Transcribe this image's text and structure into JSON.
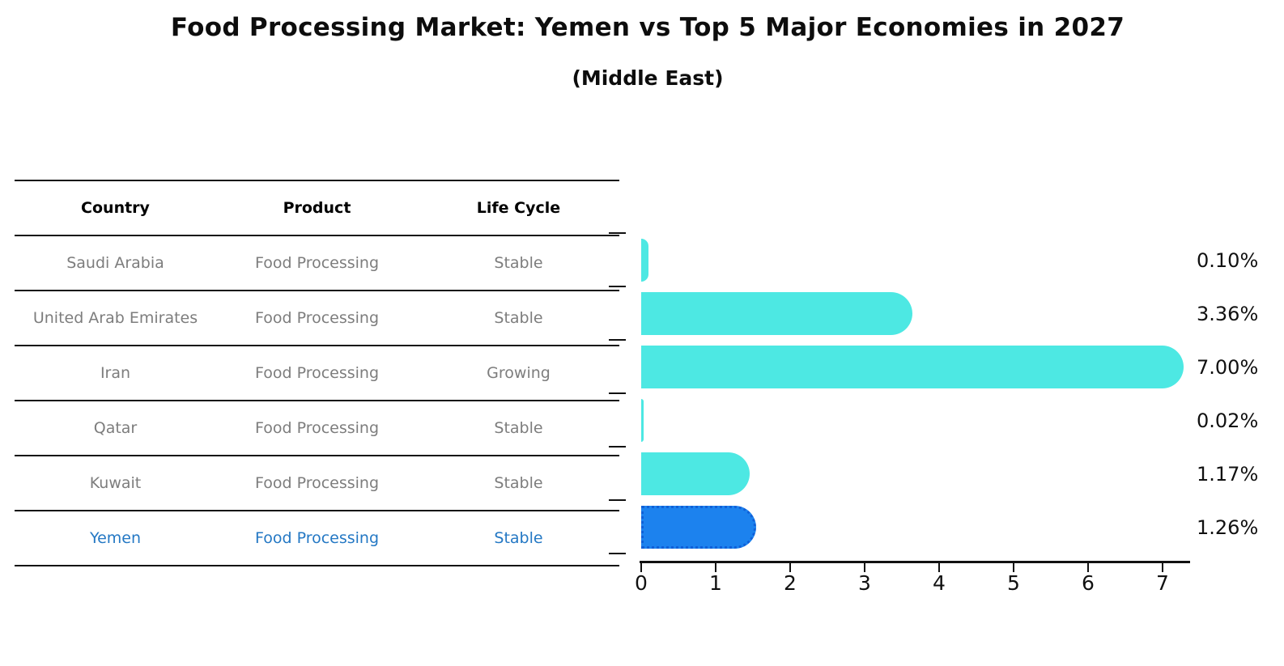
{
  "title": "Food Processing Market: Yemen vs Top 5 Major Economies in 2027",
  "subtitle": "(Middle East)",
  "table": {
    "headers": [
      "Country",
      "Product",
      "Life Cycle"
    ],
    "rows": [
      {
        "country": "Saudi Arabia",
        "product": "Food Processing",
        "life_cycle": "Stable",
        "highlighted": false
      },
      {
        "country": "United Arab Emirates",
        "product": "Food Processing",
        "life_cycle": "Stable",
        "highlighted": false
      },
      {
        "country": "Iran",
        "product": "Food Processing",
        "life_cycle": "Growing",
        "highlighted": false
      },
      {
        "country": "Qatar",
        "product": "Food Processing",
        "life_cycle": "Stable",
        "highlighted": false
      },
      {
        "country": "Kuwait",
        "product": "Food Processing",
        "life_cycle": "Stable",
        "highlighted": false
      },
      {
        "country": "Yemen",
        "product": "Food Processing",
        "life_cycle": "Stable",
        "highlighted": true
      }
    ]
  },
  "chart_data": {
    "type": "bar",
    "orientation": "horizontal",
    "title": "Food Processing Market: Yemen vs Top 5 Major Economies in 2027 (Middle East)",
    "categories": [
      "Saudi Arabia",
      "United Arab Emirates",
      "Iran",
      "Qatar",
      "Kuwait",
      "Yemen"
    ],
    "values": [
      0.1,
      3.36,
      7.0,
      0.02,
      1.17,
      1.26
    ],
    "value_labels": [
      "0.10%",
      "3.36%",
      "7.00%",
      "0.02%",
      "1.17%",
      "1.26%"
    ],
    "x_ticks": [
      0,
      1,
      2,
      3,
      4,
      5,
      6,
      7
    ],
    "xlim": [
      0,
      7.37
    ],
    "grid": false,
    "legend": "none",
    "highlight_index": 5,
    "colors": {
      "bar": "#4de8e3",
      "highlight_bar": "#1c82ee",
      "highlight_border": "#1060d8",
      "highlight_text": "#2478c4",
      "row_text": "#7d7d7d",
      "label_text": "#111111"
    }
  }
}
